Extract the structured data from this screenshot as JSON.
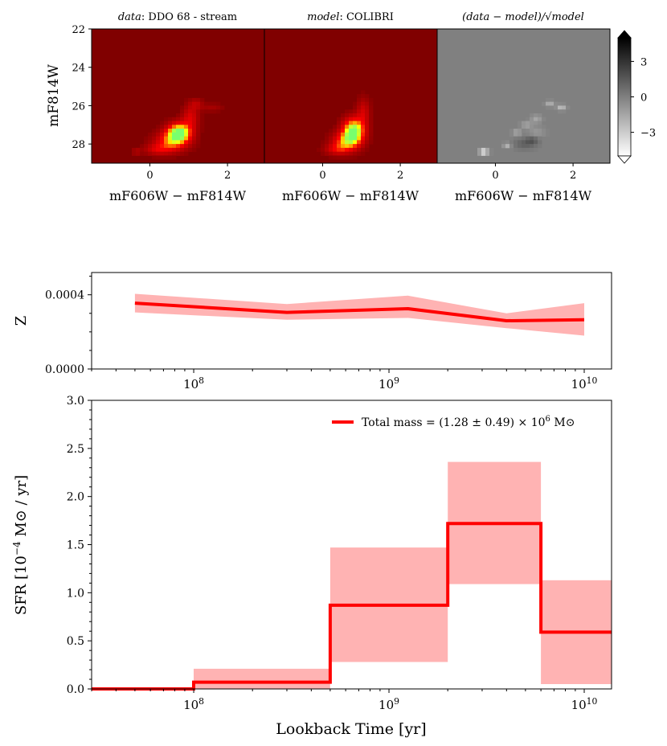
{
  "figure": {
    "colors": {
      "line": "#ff0000",
      "band": "#ffb3b3",
      "hess_bg": "#800000",
      "resid_bg": "#808080"
    }
  },
  "chart_data": [
    {
      "type": "heatmap",
      "panel": "data",
      "title_italic": "data",
      "title_rest": ": DDO 68 - stream",
      "xlabel": "mF606W − mF814W",
      "ylabel": "mF814W",
      "xlim": [
        -1.5,
        2.95
      ],
      "ylim": [
        29,
        22
      ],
      "xticks": [
        0,
        2
      ],
      "yticks": [
        22,
        24,
        26,
        28
      ],
      "blobs": [
        {
          "x": 0.75,
          "y": 27.4,
          "sx": 0.22,
          "sy": 0.35,
          "amp": 1.0
        },
        {
          "x": 0.55,
          "y": 27.9,
          "sx": 0.3,
          "sy": 0.35,
          "amp": 0.55
        },
        {
          "x": 1.05,
          "y": 26.6,
          "sx": 0.15,
          "sy": 0.45,
          "amp": 0.35
        },
        {
          "x": 1.2,
          "y": 25.9,
          "sx": 0.12,
          "sy": 0.2,
          "amp": 0.2
        },
        {
          "x": 1.6,
          "y": 26.1,
          "sx": 0.2,
          "sy": 0.15,
          "amp": 0.15
        },
        {
          "x": 0.2,
          "y": 28.3,
          "sx": 0.25,
          "sy": 0.2,
          "amp": 0.3
        },
        {
          "x": -0.35,
          "y": 28.4,
          "sx": 0.08,
          "sy": 0.1,
          "amp": 0.22
        }
      ]
    },
    {
      "type": "heatmap",
      "panel": "model",
      "title_italic": "model",
      "title_rest": ": COLIBRI",
      "xlabel": "mF606W − mF814W",
      "xlim": [
        -1.5,
        2.95
      ],
      "ylim": [
        29,
        22
      ],
      "xticks": [
        0,
        2
      ],
      "blobs": [
        {
          "x": 0.8,
          "y": 27.3,
          "sx": 0.2,
          "sy": 0.45,
          "amp": 1.0
        },
        {
          "x": 0.6,
          "y": 27.9,
          "sx": 0.25,
          "sy": 0.35,
          "amp": 0.6
        },
        {
          "x": 1.05,
          "y": 26.3,
          "sx": 0.12,
          "sy": 0.5,
          "amp": 0.3
        },
        {
          "x": 0.35,
          "y": 28.3,
          "sx": 0.22,
          "sy": 0.2,
          "amp": 0.3
        }
      ]
    },
    {
      "type": "heatmap",
      "panel": "residual",
      "title": "(data − model)/√model",
      "xlabel": "mF606W − mF814W",
      "xlim": [
        -1.5,
        2.95
      ],
      "ylim": [
        29,
        22
      ],
      "xticks": [
        0,
        2
      ],
      "colorbar": {
        "ticks": [
          3,
          0,
          -3
        ],
        "tick_labels": [
          "3",
          "0",
          "−3"
        ],
        "range": [
          -5,
          5
        ]
      },
      "blobs": [
        {
          "x": -0.3,
          "y": 28.4,
          "sx": 0.08,
          "sy": 0.1,
          "amp": -5
        },
        {
          "x": 0.3,
          "y": 28.05,
          "sx": 0.07,
          "sy": 0.08,
          "amp": -2.5
        },
        {
          "x": 0.55,
          "y": 27.4,
          "sx": 0.08,
          "sy": 0.1,
          "amp": -2
        },
        {
          "x": 0.8,
          "y": 27.0,
          "sx": 0.1,
          "sy": 0.1,
          "amp": -1.8
        },
        {
          "x": 1.05,
          "y": 26.7,
          "sx": 0.1,
          "sy": 0.15,
          "amp": -1.5
        },
        {
          "x": 1.4,
          "y": 25.9,
          "sx": 0.08,
          "sy": 0.1,
          "amp": -2
        },
        {
          "x": 1.7,
          "y": 26.1,
          "sx": 0.08,
          "sy": 0.1,
          "amp": -2.5
        },
        {
          "x": 1.05,
          "y": 27.4,
          "sx": 0.15,
          "sy": 0.2,
          "amp": -1
        },
        {
          "x": 0.75,
          "y": 28.0,
          "sx": 0.2,
          "sy": 0.2,
          "amp": 1.2
        },
        {
          "x": 0.95,
          "y": 27.8,
          "sx": 0.12,
          "sy": 0.15,
          "amp": 1.5
        }
      ]
    },
    {
      "type": "line",
      "panel": "metallicity",
      "ylabel": "Z",
      "xscale": "log",
      "xlim": [
        30000000,
        13800000000
      ],
      "ylim": [
        0,
        0.00052
      ],
      "yticks": [
        0,
        0.0004
      ],
      "ytick_labels": [
        "0.0000",
        "0.0004"
      ],
      "xticks_major": [
        100000000,
        1000000000,
        10000000000
      ],
      "xtick_labels": [
        "10^8",
        "10^9",
        "10^10"
      ],
      "x": [
        50000000,
        300000000,
        1250000000,
        4000000000,
        10000000000
      ],
      "y": [
        0.000355,
        0.000305,
        0.000325,
        0.00026,
        0.000265
      ],
      "y_lower": [
        0.000305,
        0.000265,
        0.000275,
        0.00022,
        0.00018
      ],
      "y_upper": [
        0.000405,
        0.00035,
        0.000395,
        0.0003,
        0.000355
      ]
    },
    {
      "type": "line",
      "panel": "sfh",
      "step": true,
      "xlabel": "Lookback Time [yr]",
      "ylabel_parts": {
        "pre": "SFR [10",
        "sup": "−4",
        "post": " M⊙ / yr]"
      },
      "xscale": "log",
      "xlim": [
        30000000,
        13800000000
      ],
      "ylim": [
        0,
        3.0
      ],
      "yticks": [
        0,
        0.5,
        1,
        1.5,
        2,
        2.5,
        3
      ],
      "ytick_labels": [
        "0.0",
        "0.5",
        "1.0",
        "1.5",
        "2.0",
        "2.5",
        "3.0"
      ],
      "xticks_major": [
        100000000,
        1000000000,
        10000000000
      ],
      "xtick_labels": [
        "10^8",
        "10^9",
        "10^10"
      ],
      "bins": [
        {
          "lo": 30000000,
          "hi": 100000000,
          "sfr": 0.0,
          "sfr_lo": 0.0,
          "sfr_hi": 0.0
        },
        {
          "lo": 100000000,
          "hi": 500000000,
          "sfr": 0.07,
          "sfr_lo": 0.0,
          "sfr_hi": 0.21
        },
        {
          "lo": 500000000,
          "hi": 2000000000,
          "sfr": 0.87,
          "sfr_lo": 0.28,
          "sfr_hi": 1.47
        },
        {
          "lo": 2000000000,
          "hi": 6000000000,
          "sfr": 1.72,
          "sfr_lo": 1.09,
          "sfr_hi": 2.36
        },
        {
          "lo": 6000000000,
          "hi": 13800000000,
          "sfr": 0.59,
          "sfr_lo": 0.05,
          "sfr_hi": 1.13
        }
      ],
      "legend": {
        "placement": "top-right",
        "label_pre": "Total mass = (1.28 ± 0.49) × 10",
        "label_sup": "6",
        "label_post": " M⊙"
      }
    }
  ]
}
